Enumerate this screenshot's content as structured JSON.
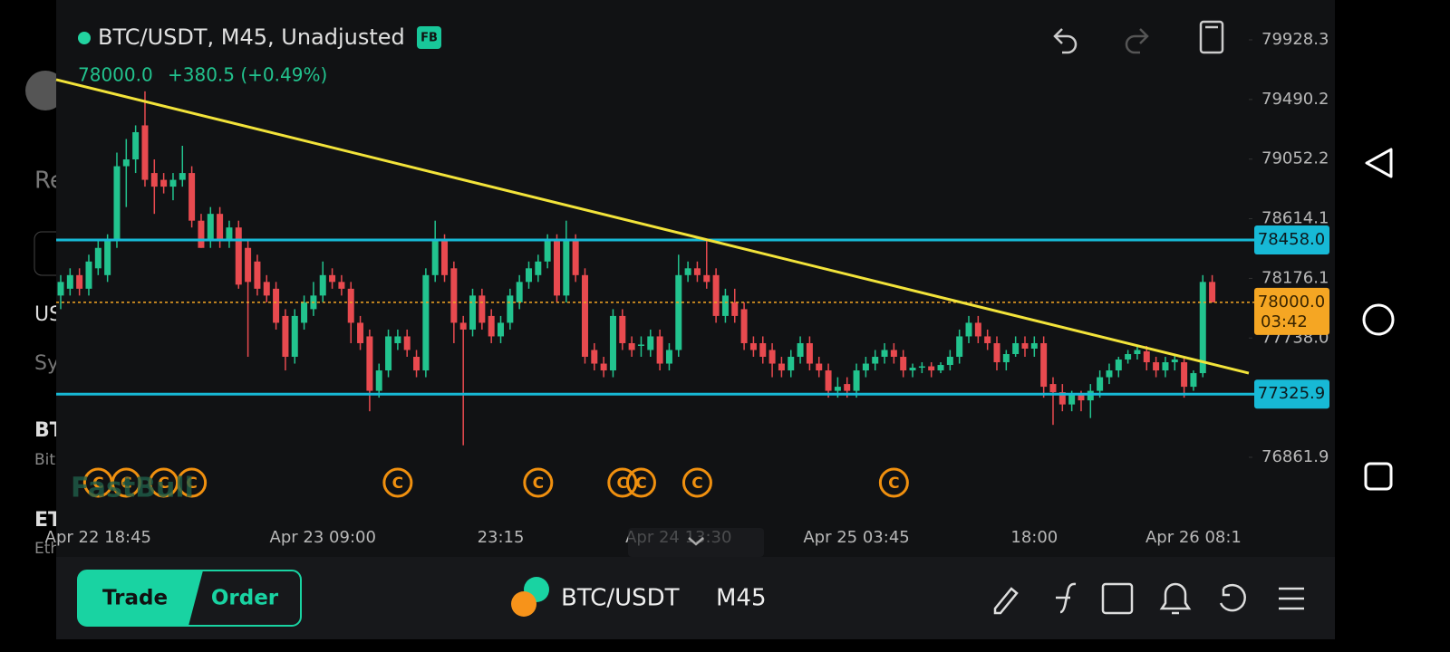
{
  "header": {
    "title": "BTC/USDT, M45, Unadjusted",
    "badge": "FB",
    "last": "78000.0",
    "change": "+380.5 (+0.49%)"
  },
  "sidebar": [
    "Re",
    "US",
    "Sy",
    "BT",
    "Bit",
    "ET",
    "Eth"
  ],
  "watermark": "FastBull",
  "chart_data": {
    "type": "candlestick",
    "ylim": [
      76130,
      80221
    ],
    "yticks": [
      79928.3,
      79490.2,
      79052.2,
      78614.1,
      78176.1,
      {
        "value": 77738,
        "label": "77738.0"
      },
      76861.9
    ],
    "levels": [
      {
        "value": 78458,
        "label": "78458.0"
      },
      {
        "value": 77325.9,
        "label": "77325.9"
      }
    ],
    "current": {
      "value": 78000,
      "label": "78000.0",
      "countdown": "03:42"
    },
    "trendline": [
      79636,
      77480
    ],
    "xlabels": [
      {
        "candle": 4,
        "label": "Apr 22 18:45"
      },
      {
        "candle": 28,
        "label": "Apr 23 09:00"
      },
      {
        "candle": 47,
        "label": "23:15"
      },
      {
        "candle": 66,
        "label": "Apr 24 13:30"
      },
      {
        "candle": 85,
        "label": "Apr 25 03:45"
      },
      {
        "candle": 104,
        "label": "18:00"
      },
      {
        "candle": 121,
        "label": "Apr 26 08:1"
      }
    ],
    "events": {
      "label": "C",
      "candles": [
        4,
        7,
        11,
        14,
        36,
        51,
        60,
        62,
        68,
        89
      ]
    },
    "candles": [
      [
        78050,
        78200,
        77950,
        78150
      ],
      [
        78100,
        78250,
        78050,
        78200
      ],
      [
        78200,
        78250,
        78050,
        78100
      ],
      [
        78100,
        78350,
        78050,
        78300
      ],
      [
        78250,
        78450,
        78200,
        78400
      ],
      [
        78200,
        78500,
        78150,
        78450
      ],
      [
        78450,
        79100,
        78400,
        79000
      ],
      [
        79000,
        79200,
        78700,
        79050
      ],
      [
        79050,
        79300,
        78950,
        79250
      ],
      [
        79300,
        79550,
        78850,
        78900
      ],
      [
        78950,
        79050,
        78650,
        78850
      ],
      [
        78900,
        78950,
        78800,
        78850
      ],
      [
        78850,
        78950,
        78750,
        78900
      ],
      [
        78900,
        79150,
        78850,
        78950
      ],
      [
        78950,
        79000,
        78550,
        78600
      ],
      [
        78600,
        78650,
        78400,
        78400
      ],
      [
        78450,
        78700,
        78400,
        78650
      ],
      [
        78650,
        78700,
        78400,
        78450
      ],
      [
        78450,
        78600,
        78400,
        78550
      ],
      [
        78550,
        78600,
        78100,
        78130
      ],
      [
        78400,
        78450,
        77600,
        78150
      ],
      [
        78300,
        78350,
        78050,
        78100
      ],
      [
        78150,
        78200,
        78000,
        78050
      ],
      [
        78100,
        78150,
        77800,
        77850
      ],
      [
        77900,
        77950,
        77500,
        77600
      ],
      [
        77600,
        77950,
        77550,
        77900
      ],
      [
        77850,
        78050,
        77800,
        78000
      ],
      [
        77950,
        78150,
        77900,
        78050
      ],
      [
        78050,
        78300,
        78000,
        78200
      ],
      [
        78200,
        78250,
        78100,
        78150
      ],
      [
        78150,
        78200,
        78050,
        78100
      ],
      [
        78100,
        78150,
        77700,
        77850
      ],
      [
        77850,
        77900,
        77650,
        77700
      ],
      [
        77750,
        77800,
        77200,
        77350
      ],
      [
        77350,
        77550,
        77300,
        77500
      ],
      [
        77500,
        77800,
        77450,
        77750
      ],
      [
        77700,
        77800,
        77650,
        77750
      ],
      [
        77750,
        77800,
        77600,
        77650
      ],
      [
        77600,
        77650,
        77450,
        77500
      ],
      [
        77500,
        78250,
        77450,
        78200
      ],
      [
        78200,
        78600,
        78150,
        78450
      ],
      [
        78450,
        78500,
        78150,
        78200
      ],
      [
        78250,
        78300,
        77700,
        77850
      ],
      [
        77850,
        77900,
        76950,
        77800
      ],
      [
        77800,
        78100,
        77750,
        78050
      ],
      [
        78050,
        78100,
        77800,
        77850
      ],
      [
        77900,
        77950,
        77700,
        77750
      ],
      [
        77750,
        77900,
        77700,
        77850
      ],
      [
        77850,
        78100,
        77800,
        78050
      ],
      [
        78000,
        78200,
        77950,
        78150
      ],
      [
        78150,
        78300,
        78100,
        78250
      ],
      [
        78200,
        78350,
        78150,
        78300
      ],
      [
        78300,
        78500,
        78250,
        78450
      ],
      [
        78450,
        78500,
        78000,
        78050
      ],
      [
        78050,
        78600,
        78000,
        78450
      ],
      [
        78450,
        78500,
        78150,
        78200
      ],
      [
        78200,
        78250,
        77550,
        77600
      ],
      [
        77650,
        77700,
        77500,
        77550
      ],
      [
        77550,
        77600,
        77450,
        77500
      ],
      [
        77500,
        77950,
        77450,
        77900
      ],
      [
        77900,
        77950,
        77650,
        77700
      ],
      [
        77700,
        77750,
        77600,
        77650
      ],
      [
        77680,
        77750,
        77600,
        77690
      ],
      [
        77650,
        77800,
        77600,
        77750
      ],
      [
        77750,
        77800,
        77500,
        77550
      ],
      [
        77550,
        77700,
        77500,
        77650
      ],
      [
        77650,
        78350,
        77600,
        78200
      ],
      [
        78200,
        78300,
        78150,
        78250
      ],
      [
        78250,
        78300,
        78150,
        78200
      ],
      [
        78200,
        78460,
        78100,
        78150
      ],
      [
        78200,
        78250,
        77850,
        77900
      ],
      [
        77900,
        78100,
        77850,
        78050
      ],
      [
        78000,
        78100,
        77850,
        77900
      ],
      [
        77950,
        78000,
        77650,
        77700
      ],
      [
        77700,
        77750,
        77600,
        77650
      ],
      [
        77700,
        77750,
        77550,
        77600
      ],
      [
        77650,
        77700,
        77450,
        77550
      ],
      [
        77550,
        77600,
        77450,
        77500
      ],
      [
        77500,
        77650,
        77450,
        77600
      ],
      [
        77600,
        77750,
        77550,
        77700
      ],
      [
        77700,
        77750,
        77500,
        77550
      ],
      [
        77550,
        77600,
        77450,
        77500
      ],
      [
        77500,
        77550,
        77300,
        77350
      ],
      [
        77350,
        77450,
        77300,
        77380
      ],
      [
        77400,
        77450,
        77300,
        77350
      ],
      [
        77350,
        77550,
        77300,
        77500
      ],
      [
        77500,
        77600,
        77450,
        77550
      ],
      [
        77550,
        77650,
        77500,
        77600
      ],
      [
        77600,
        77700,
        77550,
        77650
      ],
      [
        77650,
        77700,
        77550,
        77600
      ],
      [
        77600,
        77650,
        77450,
        77500
      ],
      [
        77500,
        77550,
        77450,
        77520
      ],
      [
        77520,
        77560,
        77480,
        77530
      ],
      [
        77530,
        77560,
        77450,
        77500
      ],
      [
        77500,
        77560,
        77480,
        77540
      ],
      [
        77540,
        77650,
        77500,
        77600
      ],
      [
        77600,
        77800,
        77550,
        77750
      ],
      [
        77750,
        77900,
        77700,
        77850
      ],
      [
        77850,
        77900,
        77700,
        77750
      ],
      [
        77750,
        77800,
        77650,
        77700
      ],
      [
        77700,
        77750,
        77500,
        77560
      ],
      [
        77560,
        77650,
        77500,
        77620
      ],
      [
        77620,
        77750,
        77600,
        77700
      ],
      [
        77700,
        77750,
        77600,
        77660
      ],
      [
        77660,
        77750,
        77600,
        77700
      ],
      [
        77700,
        77750,
        77300,
        77380
      ],
      [
        77400,
        77450,
        77100,
        77340
      ],
      [
        77340,
        77400,
        77200,
        77250
      ],
      [
        77250,
        77350,
        77200,
        77330
      ],
      [
        77330,
        77350,
        77200,
        77280
      ],
      [
        77280,
        77400,
        77150,
        77350
      ],
      [
        77350,
        77500,
        77300,
        77450
      ],
      [
        77450,
        77550,
        77400,
        77500
      ],
      [
        77500,
        77600,
        77450,
        77580
      ],
      [
        77580,
        77650,
        77550,
        77620
      ],
      [
        77620,
        77680,
        77580,
        77650
      ],
      [
        77640,
        77680,
        77500,
        77560
      ],
      [
        77560,
        77600,
        77450,
        77500
      ],
      [
        77500,
        77600,
        77450,
        77560
      ],
      [
        77560,
        77620,
        77500,
        77580
      ],
      [
        77560,
        77600,
        77300,
        77380
      ],
      [
        77380,
        77500,
        77350,
        77480
      ],
      [
        77480,
        78200,
        77450,
        78150
      ],
      [
        78150,
        78200,
        78000,
        78000
      ]
    ]
  },
  "bottom": {
    "trade": "Trade",
    "order": "Order",
    "symbol": "BTC/USDT",
    "period": "M45"
  }
}
